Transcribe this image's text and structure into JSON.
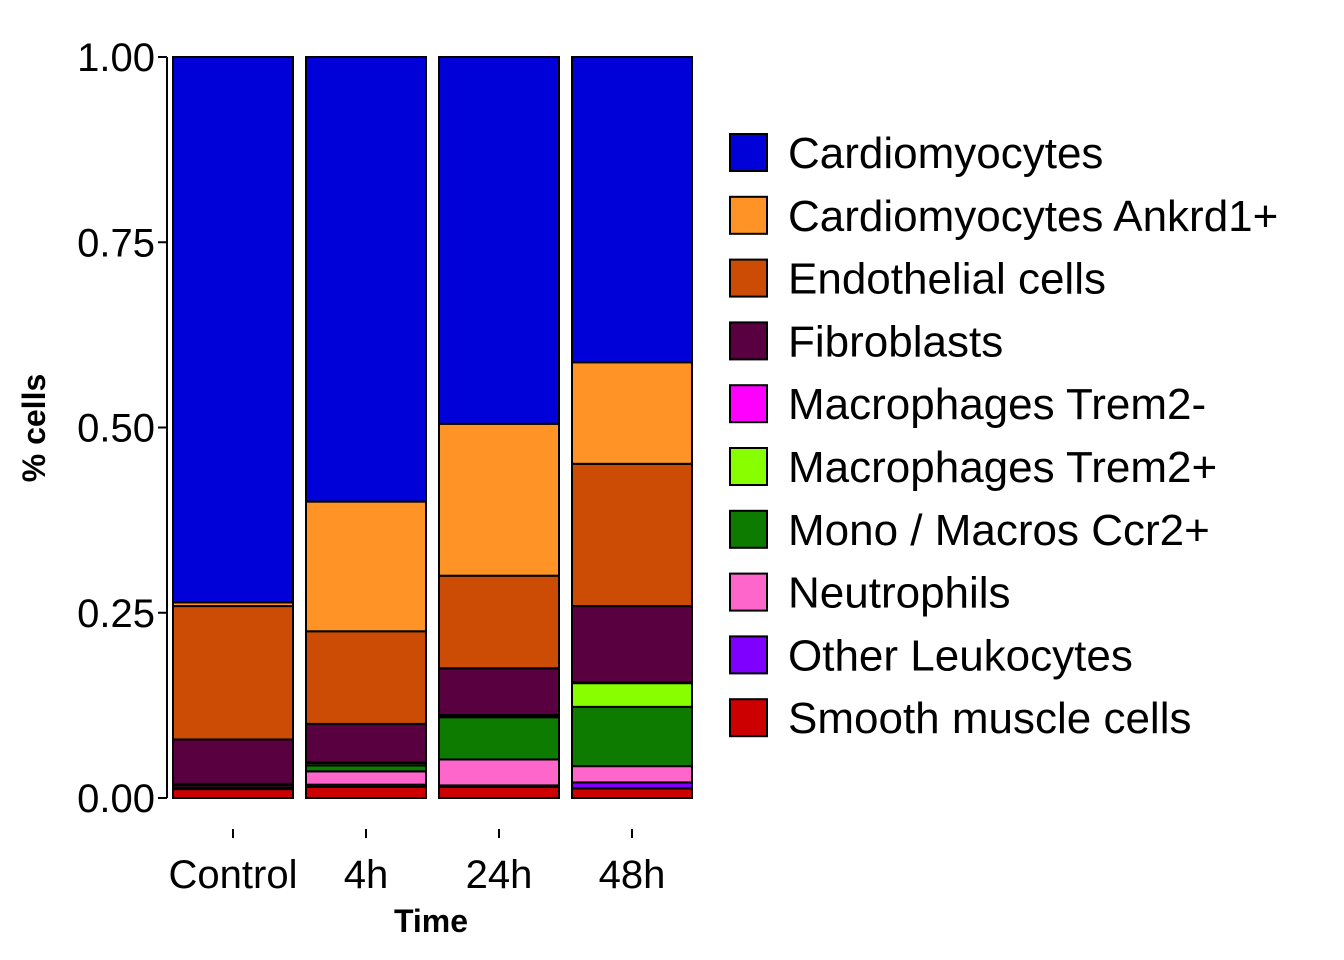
{
  "chart_data": {
    "type": "bar",
    "stacked": true,
    "xlabel": "Time",
    "ylabel": "% cells",
    "ylim": [
      0,
      1
    ],
    "yticks": [
      "0.00",
      "0.25",
      "0.50",
      "0.75",
      "1.00"
    ],
    "categories": [
      "Control",
      "4h",
      "24h",
      "48h"
    ],
    "series": [
      {
        "name": "Smooth muscle cells",
        "color": "#CC0000",
        "values": [
          0.012,
          0.015,
          0.015,
          0.013
        ]
      },
      {
        "name": "Other Leukocytes",
        "color": "#7F00FF",
        "values": [
          0.002,
          0.003,
          0.002,
          0.008
        ]
      },
      {
        "name": "Neutrophils",
        "color": "#FF66CC",
        "values": [
          0.003,
          0.018,
          0.035,
          0.022
        ]
      },
      {
        "name": "Mono / Macros Ccr2+",
        "color": "#0D7A00",
        "values": [
          0.002,
          0.008,
          0.057,
          0.08
        ]
      },
      {
        "name": "Macrophages Trem2+",
        "color": "#88FF00",
        "values": [
          0.0,
          0.003,
          0.002,
          0.032
        ]
      },
      {
        "name": "Macrophages Trem2-",
        "color": "#FF00FF",
        "values": [
          0.0,
          0.001,
          0.001,
          0.001
        ]
      },
      {
        "name": "Fibroblasts",
        "color": "#590040",
        "values": [
          0.06,
          0.052,
          0.063,
          0.103
        ]
      },
      {
        "name": "Endothelial cells",
        "color": "#CC4C05",
        "values": [
          0.18,
          0.125,
          0.125,
          0.192
        ]
      },
      {
        "name": "Cardiomyocytes Ankrd1+",
        "color": "#FF9326",
        "values": [
          0.005,
          0.175,
          0.205,
          0.137
        ]
      },
      {
        "name": "Cardiomyocytes",
        "color": "#0000D9",
        "values": [
          0.736,
          0.6,
          0.495,
          0.412
        ]
      }
    ],
    "legend": {
      "position": "right",
      "entries": [
        "Cardiomyocytes",
        "Cardiomyocytes Ankrd1+",
        "Endothelial cells",
        "Fibroblasts",
        "Macrophages Trem2-",
        "Macrophages Trem2+",
        "Mono / Macros Ccr2+",
        "Neutrophils",
        "Other Leukocytes",
        "Smooth muscle cells"
      ]
    },
    "grid": false
  }
}
